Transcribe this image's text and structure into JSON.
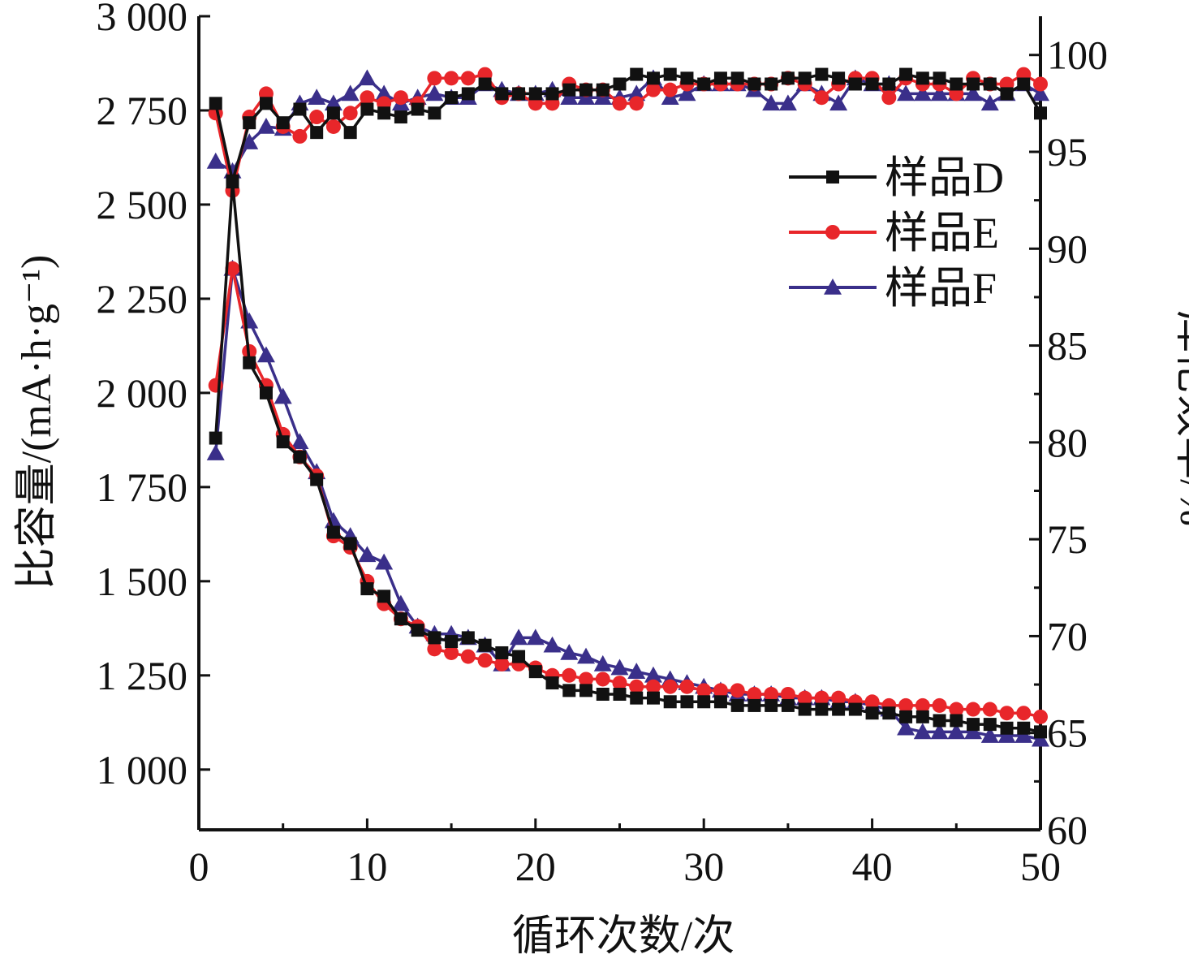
{
  "chart_data": {
    "type": "line",
    "xlabel": "循环次数/次",
    "ylabel_left": "比容量/(mA·h·g⁻¹)",
    "ylabel_right": "库伦效率/%",
    "xlim": [
      0,
      50
    ],
    "ylim_left": [
      840,
      3000
    ],
    "ylim_right": [
      60,
      102
    ],
    "x_ticks": [
      0,
      10,
      20,
      30,
      40,
      50
    ],
    "y_left_ticks": [
      1000,
      1250,
      1500,
      1750,
      2000,
      2250,
      2500,
      2750,
      3000
    ],
    "y_left_tick_labels": [
      "1 000",
      "1 250",
      "1 500",
      "1 750",
      "2 000",
      "2 250",
      "2 500",
      "2 750",
      "3 000"
    ],
    "y_right_ticks": [
      60,
      65,
      70,
      75,
      80,
      85,
      90,
      95,
      100
    ],
    "grid": false,
    "legend_position": "upper-right",
    "legend": [
      {
        "label": "样品D",
        "color": "#111111",
        "marker": "square"
      },
      {
        "label": "样品E",
        "color": "#e8262a",
        "marker": "circle"
      },
      {
        "label": "样品F",
        "color": "#3a2f8a",
        "marker": "triangle"
      }
    ],
    "x": [
      1,
      2,
      3,
      4,
      5,
      6,
      7,
      8,
      9,
      10,
      11,
      12,
      13,
      14,
      15,
      16,
      17,
      18,
      19,
      20,
      21,
      22,
      23,
      24,
      25,
      26,
      27,
      28,
      29,
      30,
      31,
      32,
      33,
      34,
      35,
      36,
      37,
      38,
      39,
      40,
      41,
      42,
      43,
      44,
      45,
      46,
      47,
      48,
      49,
      50
    ],
    "series": [
      {
        "name": "样品D",
        "axis": "left",
        "values": [
          1880,
          2560,
          2080,
          2000,
          1870,
          1830,
          1770,
          1630,
          1600,
          1480,
          1460,
          1400,
          1370,
          1350,
          1340,
          1350,
          1330,
          1310,
          1300,
          1260,
          1230,
          1210,
          1210,
          1200,
          1200,
          1190,
          1190,
          1180,
          1180,
          1180,
          1180,
          1170,
          1170,
          1170,
          1170,
          1160,
          1160,
          1160,
          1160,
          1150,
          1150,
          1140,
          1140,
          1130,
          1130,
          1120,
          1120,
          1110,
          1110,
          1100
        ]
      },
      {
        "name": "样品E",
        "axis": "left",
        "values": [
          2020,
          2330,
          2110,
          2020,
          1890,
          1830,
          1780,
          1620,
          1590,
          1500,
          1440,
          1400,
          1380,
          1320,
          1310,
          1300,
          1290,
          1280,
          1280,
          1270,
          1250,
          1250,
          1240,
          1240,
          1230,
          1220,
          1220,
          1220,
          1220,
          1210,
          1210,
          1210,
          1200,
          1200,
          1200,
          1190,
          1190,
          1190,
          1180,
          1180,
          1170,
          1170,
          1170,
          1170,
          1160,
          1160,
          1160,
          1150,
          1150,
          1140
        ]
      },
      {
        "name": "样品F",
        "axis": "left",
        "values": [
          1840,
          2330,
          2190,
          2100,
          1990,
          1870,
          1790,
          1660,
          1620,
          1570,
          1550,
          1440,
          1380,
          1360,
          1360,
          1350,
          1330,
          1280,
          1350,
          1350,
          1330,
          1310,
          1300,
          1280,
          1270,
          1260,
          1250,
          1240,
          1230,
          1220,
          1210,
          1200,
          1200,
          1200,
          1190,
          1190,
          1190,
          1180,
          1180,
          1170,
          1160,
          1110,
          1100,
          1100,
          1100,
          1100,
          1090,
          1090,
          1090,
          1080
        ]
      },
      {
        "name": "样品D",
        "axis": "right",
        "values": [
          97.5,
          93.5,
          96.5,
          97.5,
          96.5,
          97.2,
          96.0,
          97.0,
          96.0,
          97.2,
          97.0,
          96.8,
          97.2,
          97.0,
          97.8,
          98.0,
          98.5,
          98.0,
          98.0,
          98.0,
          98.0,
          98.2,
          98.2,
          98.2,
          98.5,
          99.0,
          98.8,
          99.0,
          98.8,
          98.5,
          98.8,
          98.8,
          98.5,
          98.5,
          98.8,
          98.8,
          99.0,
          98.8,
          98.5,
          98.5,
          98.5,
          99.0,
          98.8,
          98.8,
          98.5,
          98.5,
          98.5,
          98.0,
          98.5,
          97.0
        ]
      },
      {
        "name": "样品E",
        "axis": "right",
        "values": [
          97.0,
          93.0,
          96.8,
          98.0,
          96.3,
          95.8,
          96.8,
          96.3,
          97.0,
          97.8,
          97.5,
          97.8,
          97.5,
          98.8,
          98.8,
          98.8,
          99.0,
          97.8,
          98.0,
          97.5,
          97.5,
          98.5,
          98.2,
          98.2,
          97.5,
          97.5,
          98.2,
          98.2,
          98.5,
          98.5,
          98.5,
          98.5,
          98.5,
          98.5,
          98.8,
          98.5,
          97.8,
          98.5,
          98.8,
          98.8,
          97.8,
          98.8,
          98.5,
          98.5,
          98.0,
          98.8,
          98.5,
          98.5,
          99.0,
          98.5
        ]
      },
      {
        "name": "样品F",
        "axis": "right",
        "values": [
          94.5,
          94.0,
          95.5,
          96.3,
          96.2,
          97.5,
          97.8,
          97.5,
          98.0,
          98.8,
          98.0,
          97.5,
          97.8,
          98.0,
          97.8,
          97.8,
          98.5,
          98.2,
          98.0,
          98.0,
          98.2,
          97.8,
          97.8,
          97.8,
          97.8,
          98.0,
          98.8,
          97.8,
          98.0,
          98.5,
          98.5,
          98.5,
          98.2,
          97.5,
          97.5,
          98.5,
          98.0,
          97.5,
          98.8,
          98.5,
          98.5,
          98.0,
          98.0,
          98.0,
          98.0,
          98.0,
          97.5,
          98.0,
          98.5,
          98.0
        ]
      }
    ]
  }
}
